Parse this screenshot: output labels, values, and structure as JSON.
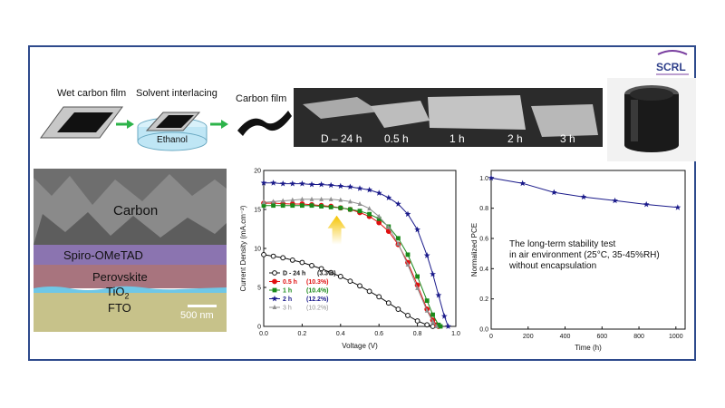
{
  "logo": {
    "text": "SCRL"
  },
  "process": {
    "step1": "Wet carbon film",
    "step2": "Solvent interlacing",
    "solvent": "Ethanol",
    "step3": "Carbon film"
  },
  "photo_labels": [
    "D – 24 h",
    "0.5 h",
    "1 h",
    "2 h",
    "3 h"
  ],
  "sem": {
    "layers": [
      "Carbon",
      "Spiro-OMeTAD",
      "Perovskite",
      "TiO",
      "FTO"
    ],
    "tio_sub": "2",
    "scale_bar": "500 nm"
  },
  "colors": {
    "frame": "#2e4a8c",
    "black": "#111111",
    "red": "#e01010",
    "green": "#1a8a1a",
    "blue": "#1a1a8a",
    "gray": "#909090"
  },
  "chart_data": [
    {
      "type": "line",
      "xlabel": "Voltage (V)",
      "ylabel": "Current Density (mA.cm⁻²)",
      "xlim": [
        0.0,
        1.0
      ],
      "ylim": [
        0,
        20
      ],
      "xticks": [
        "0.0",
        "0.2",
        "0.4",
        "0.6",
        "0.8",
        "1.0"
      ],
      "yticks": [
        "0",
        "5",
        "10",
        "15",
        "20"
      ],
      "series": [
        {
          "name": "D - 24 h",
          "pce": "(3.3%)",
          "color": "#111111",
          "marker": "circle-open",
          "x": [
            0,
            0.05,
            0.1,
            0.15,
            0.2,
            0.25,
            0.3,
            0.35,
            0.4,
            0.45,
            0.5,
            0.55,
            0.6,
            0.65,
            0.7,
            0.75,
            0.8,
            0.85,
            0.88
          ],
          "y": [
            9.2,
            9.0,
            8.8,
            8.5,
            8.2,
            7.8,
            7.4,
            6.9,
            6.4,
            5.8,
            5.2,
            4.5,
            3.8,
            3.0,
            2.2,
            1.4,
            0.7,
            0.2,
            0
          ]
        },
        {
          "name": "0.5 h",
          "pce": "(10.3%)",
          "color": "#e01010",
          "marker": "circle",
          "x": [
            0,
            0.05,
            0.1,
            0.15,
            0.2,
            0.25,
            0.3,
            0.35,
            0.4,
            0.45,
            0.5,
            0.55,
            0.6,
            0.65,
            0.7,
            0.75,
            0.8,
            0.85,
            0.88,
            0.9,
            0.91
          ],
          "y": [
            15.8,
            15.8,
            15.75,
            15.7,
            15.7,
            15.6,
            15.5,
            15.4,
            15.2,
            15.0,
            14.6,
            14.1,
            13.3,
            12.2,
            10.5,
            8.2,
            5.3,
            2.2,
            0.8,
            0.2,
            0
          ]
        },
        {
          "name": "1 h",
          "pce": "(10.4%)",
          "color": "#1a8a1a",
          "marker": "square",
          "x": [
            0,
            0.05,
            0.1,
            0.15,
            0.2,
            0.25,
            0.3,
            0.35,
            0.4,
            0.45,
            0.5,
            0.55,
            0.6,
            0.65,
            0.7,
            0.75,
            0.8,
            0.85,
            0.88,
            0.91,
            0.92
          ],
          "y": [
            15.5,
            15.5,
            15.5,
            15.5,
            15.5,
            15.5,
            15.4,
            15.3,
            15.2,
            15.0,
            14.8,
            14.4,
            13.8,
            12.8,
            11.3,
            9.2,
            6.4,
            3.3,
            1.5,
            0.2,
            0
          ]
        },
        {
          "name": "2 h",
          "pce": "(12.2%)",
          "color": "#1a1a8a",
          "marker": "star",
          "x": [
            0,
            0.05,
            0.1,
            0.15,
            0.2,
            0.25,
            0.3,
            0.35,
            0.4,
            0.45,
            0.5,
            0.55,
            0.6,
            0.65,
            0.7,
            0.75,
            0.8,
            0.85,
            0.88,
            0.91,
            0.94,
            0.96
          ],
          "y": [
            18.4,
            18.4,
            18.3,
            18.3,
            18.3,
            18.2,
            18.2,
            18.1,
            18.0,
            17.9,
            17.7,
            17.5,
            17.1,
            16.5,
            15.7,
            14.4,
            12.4,
            9.1,
            6.7,
            4.0,
            1.3,
            0
          ]
        },
        {
          "name": "3 h",
          "pce": "(10.2%)",
          "color": "#909090",
          "marker": "triangle",
          "x": [
            0,
            0.05,
            0.1,
            0.15,
            0.2,
            0.25,
            0.3,
            0.35,
            0.4,
            0.45,
            0.5,
            0.55,
            0.6,
            0.65,
            0.7,
            0.75,
            0.8,
            0.85,
            0.88,
            0.9
          ],
          "y": [
            15.9,
            16.0,
            16.1,
            16.2,
            16.3,
            16.3,
            16.3,
            16.3,
            16.2,
            16.0,
            15.7,
            15.1,
            14.1,
            12.7,
            10.6,
            7.9,
            4.9,
            2.0,
            0.6,
            0
          ]
        }
      ]
    },
    {
      "type": "line",
      "xlabel": "Time (h)",
      "ylabel": "Normalized PCE",
      "xlim": [
        0,
        1050
      ],
      "ylim": [
        0.0,
        1.05
      ],
      "xticks": [
        "0",
        "200",
        "400",
        "600",
        "800",
        "1000"
      ],
      "yticks": [
        "0.0",
        "0.2",
        "0.4",
        "0.6",
        "0.8",
        "1.0"
      ],
      "annotation": [
        "The long-term stability test",
        "in air environment (25°C, 35-45%RH)",
        "without encapsulation"
      ],
      "series": [
        {
          "color": "#1a1a8a",
          "marker": "star",
          "x": [
            0,
            170,
            340,
            500,
            670,
            840,
            1010
          ],
          "y": [
            1.0,
            0.965,
            0.905,
            0.875,
            0.85,
            0.825,
            0.805
          ]
        }
      ]
    }
  ]
}
